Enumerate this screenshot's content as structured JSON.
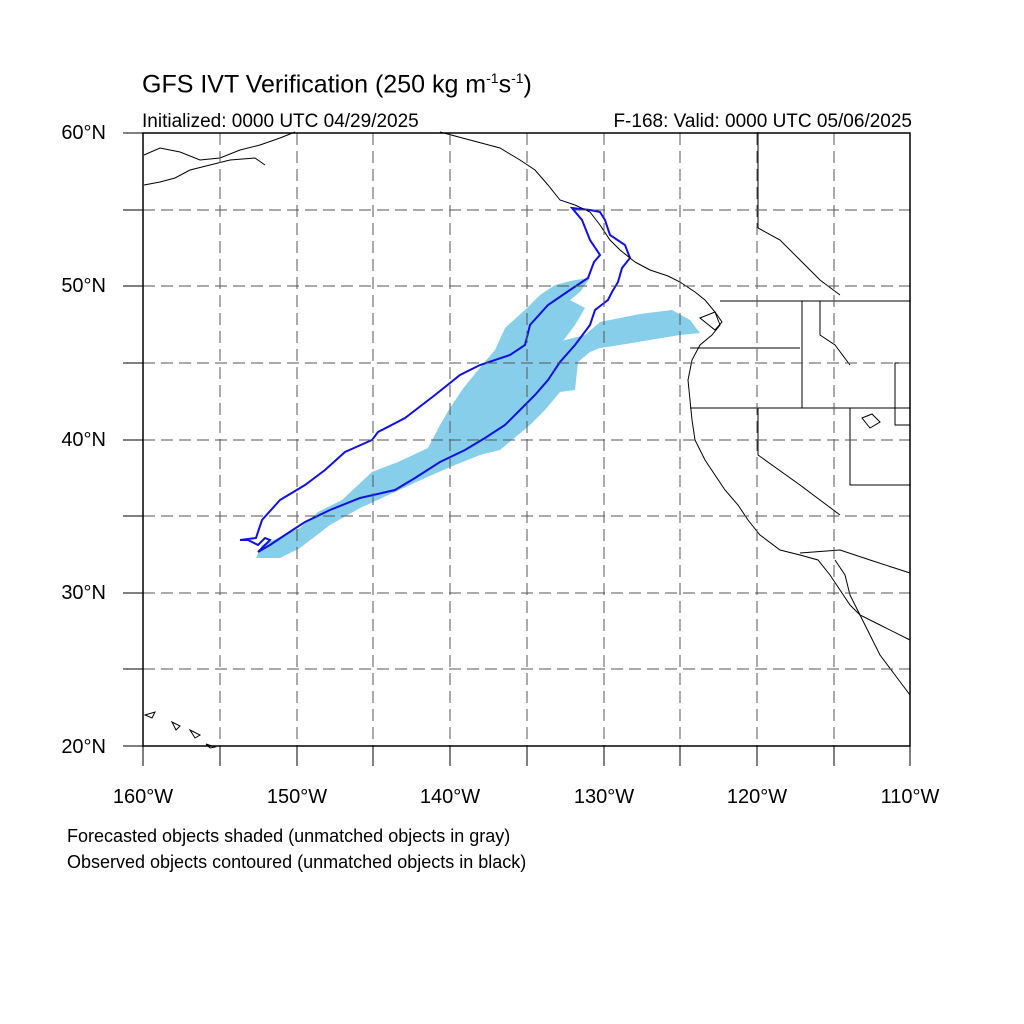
{
  "title": {
    "main": "GFS IVT Verification (250 kg m",
    "exp1": "-1",
    "mid": "s",
    "exp2": "-1",
    "end": ")"
  },
  "subtitle_left": "Initialized: 0000 UTC 04/29/2025",
  "subtitle_right": "F-168: Valid: 0000 UTC 05/06/2025",
  "colors": {
    "forecast_fill": "#87ceeb",
    "observed_contour": "#1010e0",
    "grid": "#000000",
    "coast": "#000000"
  },
  "map": {
    "lon_range": [
      -160,
      -110
    ],
    "lat_range": [
      20,
      60
    ],
    "lat_labels": [
      "60°N",
      "50°N",
      "40°N",
      "30°N",
      "20°N"
    ],
    "lon_labels": [
      "160°W",
      "150°W",
      "140°W",
      "130°W",
      "120°W",
      "110°W"
    ],
    "grid_style": "dashed, every 5 degrees"
  },
  "legend": {
    "line1": "Forecasted objects shaded (unmatched objects in gray)",
    "line2": "Observed objects contoured (unmatched objects in black)"
  }
}
